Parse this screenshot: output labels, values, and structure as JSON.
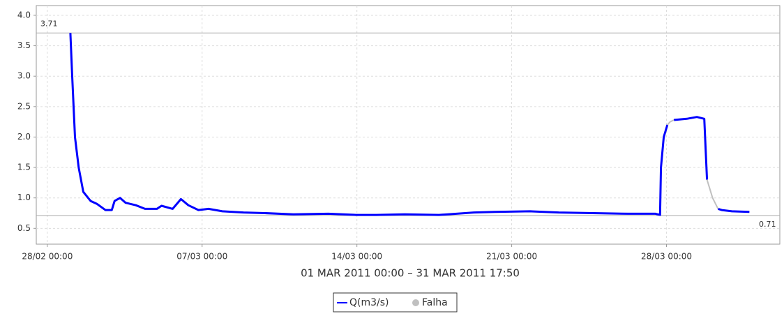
{
  "chart_data": {
    "type": "line",
    "subtitle": "01 MAR 2011 00:00 – 31 MAR 2011 17:50",
    "x": [
      "01/03 01:00",
      "01/03 03:00",
      "01/03 06:00",
      "01/03 10:00",
      "01/03 15:00",
      "01/03 23:00",
      "02/03 06:00",
      "02/03 15:00",
      "02/03 22:00",
      "03/03 01:00",
      "03/03 07:00",
      "03/03 13:00",
      "04/03 00:00",
      "04/03 10:00",
      "04/03 23:00",
      "05/03 04:00",
      "05/03 16:00",
      "06/03 01:00",
      "06/03 09:00",
      "06/03 20:00",
      "07/03 07:00",
      "07/03 22:00",
      "08/03 21:00",
      "09/03 20:00",
      "11/03 03:00",
      "12/03 17:00",
      "13/03 23:00",
      "14/03 21:00",
      "16/03 04:00",
      "17/03 17:00",
      "19/03 07:00",
      "20/03 06:00",
      "21/03 20:00",
      "23/03 03:00",
      "24/03 16:00",
      "26/03 06:00",
      "27/03 12:00",
      "27/03 17:00",
      "27/03 18:00",
      "27/03 21:00",
      "28/03 01:00",
      "28/03 04:00",
      "28/03 08:00",
      "28/03 22:00",
      "29/03 09:00",
      "29/03 17:00",
      "29/03 20:00",
      "30/03 02:00",
      "30/03 08:00",
      "30/03 12:00",
      "30/03 23:00",
      "31/03 18:00"
    ],
    "series": [
      {
        "name": "Q(m3/s)",
        "color": "#0000ff",
        "values": [
          3.71,
          3.0,
          2.0,
          1.5,
          1.1,
          0.95,
          0.9,
          0.8,
          0.8,
          0.95,
          1.0,
          0.92,
          0.88,
          0.82,
          0.82,
          0.87,
          0.82,
          0.98,
          0.88,
          0.8,
          0.82,
          0.78,
          0.76,
          0.75,
          0.73,
          0.74,
          0.72,
          0.72,
          0.73,
          0.72,
          0.76,
          0.77,
          0.78,
          0.76,
          0.75,
          0.74,
          0.74,
          0.72,
          1.5,
          2.0,
          2.2,
          null,
          2.28,
          2.3,
          2.33,
          2.3,
          1.3,
          null,
          0.82,
          0.8,
          0.78,
          0.77
        ]
      },
      {
        "name": "Falha",
        "color": "#c0c0c0",
        "values": [
          null,
          null,
          null,
          null,
          null,
          null,
          null,
          null,
          null,
          null,
          null,
          null,
          null,
          null,
          null,
          null,
          null,
          null,
          null,
          null,
          null,
          null,
          null,
          null,
          null,
          null,
          null,
          null,
          null,
          null,
          null,
          null,
          null,
          null,
          null,
          null,
          null,
          null,
          null,
          null,
          2.2,
          2.25,
          2.28,
          null,
          null,
          null,
          1.3,
          1.0,
          0.82,
          null,
          null,
          null
        ]
      }
    ],
    "max_line": 3.71,
    "min_line": 0.71,
    "xlim": [
      "27/02 12:00",
      "02/04 03:00"
    ],
    "xticks": [
      "28/02 00:00",
      "07/03 00:00",
      "14/03 00:00",
      "21/03 00:00",
      "28/03 00:00"
    ],
    "ylim": [
      0.24,
      4.16
    ],
    "yticks": [
      {
        "value": 0.5,
        "label": "0.5"
      },
      {
        "value": 1.0,
        "label": "1.0"
      },
      {
        "value": 1.5,
        "label": "1.5"
      },
      {
        "value": 2.0,
        "label": "2.0"
      },
      {
        "value": 2.5,
        "label": "2.5"
      },
      {
        "value": 3.0,
        "label": "3.0"
      },
      {
        "value": 3.5,
        "label": "3.5"
      },
      {
        "value": 4.0,
        "label": "4.0"
      }
    ],
    "grid": true
  }
}
